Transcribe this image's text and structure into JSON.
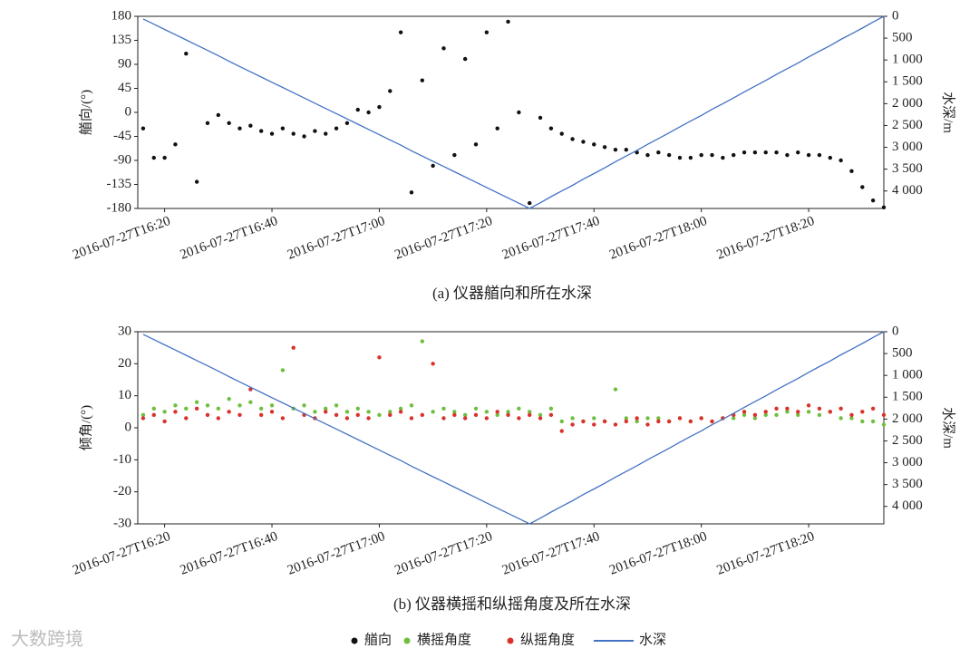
{
  "chart_data": [
    {
      "type": "scatter",
      "title": "(a) 仪器艏向和所在水深",
      "ylabel": "艏向/(°)",
      "y2label": "水深/m",
      "x": [
        "2016-07-27T16:16",
        "2016-07-27T16:18",
        "2016-07-27T16:20",
        "2016-07-27T16:22",
        "2016-07-27T16:24",
        "2016-07-27T16:26",
        "2016-07-27T16:28",
        "2016-07-27T16:30",
        "2016-07-27T16:32",
        "2016-07-27T16:34",
        "2016-07-27T16:36",
        "2016-07-27T16:38",
        "2016-07-27T16:40",
        "2016-07-27T16:42",
        "2016-07-27T16:44",
        "2016-07-27T16:46",
        "2016-07-27T16:48",
        "2016-07-27T16:50",
        "2016-07-27T16:52",
        "2016-07-27T16:54",
        "2016-07-27T16:56",
        "2016-07-27T16:58",
        "2016-07-27T17:00",
        "2016-07-27T17:02",
        "2016-07-27T17:04",
        "2016-07-27T17:06",
        "2016-07-27T17:08",
        "2016-07-27T17:10",
        "2016-07-27T17:12",
        "2016-07-27T17:14",
        "2016-07-27T17:16",
        "2016-07-27T17:18",
        "2016-07-27T17:20",
        "2016-07-27T17:22",
        "2016-07-27T17:24",
        "2016-07-27T17:26",
        "2016-07-27T17:28",
        "2016-07-27T17:30",
        "2016-07-27T17:32",
        "2016-07-27T17:34",
        "2016-07-27T17:36",
        "2016-07-27T17:38",
        "2016-07-27T17:40",
        "2016-07-27T17:42",
        "2016-07-27T17:44",
        "2016-07-27T17:46",
        "2016-07-27T17:48",
        "2016-07-27T17:50",
        "2016-07-27T17:52",
        "2016-07-27T17:54",
        "2016-07-27T17:56",
        "2016-07-27T17:58",
        "2016-07-27T18:00",
        "2016-07-27T18:02",
        "2016-07-27T18:04",
        "2016-07-27T18:06",
        "2016-07-27T18:08",
        "2016-07-27T18:10",
        "2016-07-27T18:12",
        "2016-07-27T18:14",
        "2016-07-27T18:16",
        "2016-07-27T18:18",
        "2016-07-27T18:20",
        "2016-07-27T18:22",
        "2016-07-27T18:24",
        "2016-07-27T18:26",
        "2016-07-27T18:28",
        "2016-07-27T18:30",
        "2016-07-27T18:32",
        "2016-07-27T18:34"
      ],
      "series": [
        {
          "name": "艏向",
          "color": "#111111",
          "style": "dot",
          "values": [
            -30,
            -85,
            -85,
            -60,
            110,
            -130,
            -20,
            -5,
            -20,
            -30,
            -25,
            -35,
            -40,
            -30,
            -40,
            -45,
            -35,
            -40,
            -30,
            -20,
            5,
            0,
            10,
            40,
            150,
            -150,
            60,
            -100,
            120,
            -80,
            100,
            -60,
            150,
            -30,
            170,
            0,
            -170,
            -10,
            -30,
            -40,
            -50,
            -55,
            -60,
            -65,
            -70,
            -70,
            -75,
            -80,
            -75,
            -80,
            -85,
            -85,
            -80,
            -80,
            -85,
            -80,
            -75,
            -75,
            -75,
            -75,
            -80,
            -75,
            -80,
            -80,
            -85,
            -90,
            -110,
            -140,
            -165,
            -178
          ]
        },
        {
          "name": "水深",
          "color": "#4472c4",
          "style": "line",
          "axis": "y2",
          "values": [
            60,
            180,
            300,
            420,
            540,
            660,
            780,
            900,
            1030,
            1150,
            1270,
            1390,
            1510,
            1630,
            1750,
            1870,
            1990,
            2110,
            2230,
            2350,
            2470,
            2590,
            2710,
            2830,
            2950,
            3080,
            3200,
            3320,
            3440,
            3560,
            3680,
            3800,
            3920,
            4040,
            4160,
            4280,
            4400,
            4270,
            4130,
            4000,
            3870,
            3730,
            3600,
            3470,
            3330,
            3200,
            3070,
            2930,
            2800,
            2670,
            2530,
            2400,
            2270,
            2130,
            2000,
            1870,
            1730,
            1600,
            1470,
            1330,
            1200,
            1070,
            930,
            800,
            670,
            530,
            400,
            270,
            130,
            0
          ]
        }
      ],
      "xlim": [
        "2016-07-27T16:15",
        "2016-07-27T18:34"
      ],
      "xticks": [
        "2016-07-27T16:20",
        "2016-07-27T16:40",
        "2016-07-27T17:00",
        "2016-07-27T17:20",
        "2016-07-27T17:40",
        "2016-07-27T18:00",
        "2016-07-27T18:20"
      ],
      "ylim": [
        -180,
        180
      ],
      "yticks": [
        -180,
        -135,
        -90,
        -45,
        0,
        45,
        90,
        135,
        180
      ],
      "y2lim": [
        4400,
        0
      ],
      "y2ticks": [
        0,
        500,
        {
          "value": 1000,
          "label": "1 000"
        },
        {
          "value": 1500,
          "label": "1 500"
        },
        {
          "value": 2000,
          "label": "2 000"
        },
        {
          "value": 2500,
          "label": "2 500"
        },
        {
          "value": 3000,
          "label": "3 000"
        },
        {
          "value": 3500,
          "label": "3 500"
        },
        {
          "value": 4000,
          "label": "4 000"
        }
      ]
    },
    {
      "type": "scatter",
      "title": "(b) 仪器横摇和纵摇角度及所在水深",
      "ylabel": "倾角/(°)",
      "y2label": "水深/m",
      "x": [
        "2016-07-27T16:16",
        "2016-07-27T16:18",
        "2016-07-27T16:20",
        "2016-07-27T16:22",
        "2016-07-27T16:24",
        "2016-07-27T16:26",
        "2016-07-27T16:28",
        "2016-07-27T16:30",
        "2016-07-27T16:32",
        "2016-07-27T16:34",
        "2016-07-27T16:36",
        "2016-07-27T16:38",
        "2016-07-27T16:40",
        "2016-07-27T16:42",
        "2016-07-27T16:44",
        "2016-07-27T16:46",
        "2016-07-27T16:48",
        "2016-07-27T16:50",
        "2016-07-27T16:52",
        "2016-07-27T16:54",
        "2016-07-27T16:56",
        "2016-07-27T16:58",
        "2016-07-27T17:00",
        "2016-07-27T17:02",
        "2016-07-27T17:04",
        "2016-07-27T17:06",
        "2016-07-27T17:08",
        "2016-07-27T17:10",
        "2016-07-27T17:12",
        "2016-07-27T17:14",
        "2016-07-27T17:16",
        "2016-07-27T17:18",
        "2016-07-27T17:20",
        "2016-07-27T17:22",
        "2016-07-27T17:24",
        "2016-07-27T17:26",
        "2016-07-27T17:28",
        "2016-07-27T17:30",
        "2016-07-27T17:32",
        "2016-07-27T17:34",
        "2016-07-27T17:36",
        "2016-07-27T17:38",
        "2016-07-27T17:40",
        "2016-07-27T17:42",
        "2016-07-27T17:44",
        "2016-07-27T17:46",
        "2016-07-27T17:48",
        "2016-07-27T17:50",
        "2016-07-27T17:52",
        "2016-07-27T17:54",
        "2016-07-27T17:56",
        "2016-07-27T17:58",
        "2016-07-27T18:00",
        "2016-07-27T18:02",
        "2016-07-27T18:04",
        "2016-07-27T18:06",
        "2016-07-27T18:08",
        "2016-07-27T18:10",
        "2016-07-27T18:12",
        "2016-07-27T18:14",
        "2016-07-27T18:16",
        "2016-07-27T18:18",
        "2016-07-27T18:20",
        "2016-07-27T18:22",
        "2016-07-27T18:24",
        "2016-07-27T18:26",
        "2016-07-27T18:28",
        "2016-07-27T18:30",
        "2016-07-27T18:32",
        "2016-07-27T18:34"
      ],
      "series": [
        {
          "name": "横摇角度",
          "color": "#6fbf3f",
          "style": "dot",
          "values": [
            4,
            6,
            5,
            7,
            6,
            8,
            7,
            6,
            9,
            7,
            8,
            6,
            7,
            18,
            6,
            7,
            5,
            6,
            7,
            5,
            6,
            5,
            4,
            5,
            6,
            7,
            27,
            5,
            6,
            5,
            4,
            6,
            5,
            4,
            5,
            6,
            5,
            4,
            6,
            2,
            3,
            2,
            3,
            2,
            12,
            3,
            2,
            3,
            3,
            2,
            3,
            2,
            3,
            2,
            3,
            3,
            4,
            3,
            4,
            4,
            5,
            4,
            5,
            4,
            5,
            3,
            3,
            2,
            2,
            1
          ]
        },
        {
          "name": "纵摇角度",
          "color": "#d9322b",
          "style": "dot",
          "values": [
            3,
            4,
            2,
            5,
            3,
            6,
            4,
            3,
            5,
            4,
            12,
            4,
            5,
            3,
            25,
            4,
            3,
            5,
            4,
            3,
            4,
            3,
            22,
            4,
            5,
            3,
            4,
            20,
            3,
            4,
            3,
            4,
            3,
            5,
            4,
            3,
            4,
            3,
            4,
            -1,
            1,
            2,
            1,
            2,
            1,
            2,
            3,
            1,
            2,
            2,
            3,
            2,
            3,
            2,
            3,
            4,
            5,
            4,
            5,
            6,
            6,
            5,
            7,
            6,
            5,
            6,
            4,
            5,
            6,
            4
          ]
        },
        {
          "name": "水深",
          "color": "#4472c4",
          "style": "line",
          "axis": "y2",
          "values": [
            60,
            180,
            300,
            420,
            540,
            660,
            780,
            900,
            1030,
            1150,
            1270,
            1390,
            1510,
            1630,
            1750,
            1870,
            1990,
            2110,
            2230,
            2350,
            2470,
            2590,
            2710,
            2830,
            2950,
            3080,
            3200,
            3320,
            3440,
            3560,
            3680,
            3800,
            3920,
            4040,
            4160,
            4280,
            4400,
            4270,
            4130,
            4000,
            3870,
            3730,
            3600,
            3470,
            3330,
            3200,
            3070,
            2930,
            2800,
            2670,
            2530,
            2400,
            2270,
            2130,
            2000,
            1870,
            1730,
            1600,
            1470,
            1330,
            1200,
            1070,
            930,
            800,
            670,
            530,
            400,
            270,
            130,
            0
          ]
        }
      ],
      "xlim": [
        "2016-07-27T16:15",
        "2016-07-27T18:34"
      ],
      "xticks": [
        "2016-07-27T16:20",
        "2016-07-27T16:40",
        "2016-07-27T17:00",
        "2016-07-27T17:20",
        "2016-07-27T17:40",
        "2016-07-27T18:00",
        "2016-07-27T18:20"
      ],
      "ylim": [
        -30,
        30
      ],
      "yticks": [
        -30,
        -20,
        -10,
        0,
        10,
        20,
        30
      ],
      "y2lim": [
        4400,
        0
      ],
      "y2ticks": [
        0,
        500,
        {
          "value": 1000,
          "label": "1 000"
        },
        {
          "value": 1500,
          "label": "1 500"
        },
        {
          "value": 2000,
          "label": "2 000"
        },
        {
          "value": 2500,
          "label": "2 500"
        },
        {
          "value": 3000,
          "label": "3 000"
        },
        {
          "value": 3500,
          "label": "3 500"
        },
        {
          "value": 4000,
          "label": "4 000"
        }
      ]
    }
  ],
  "watermark": "大数跨境"
}
